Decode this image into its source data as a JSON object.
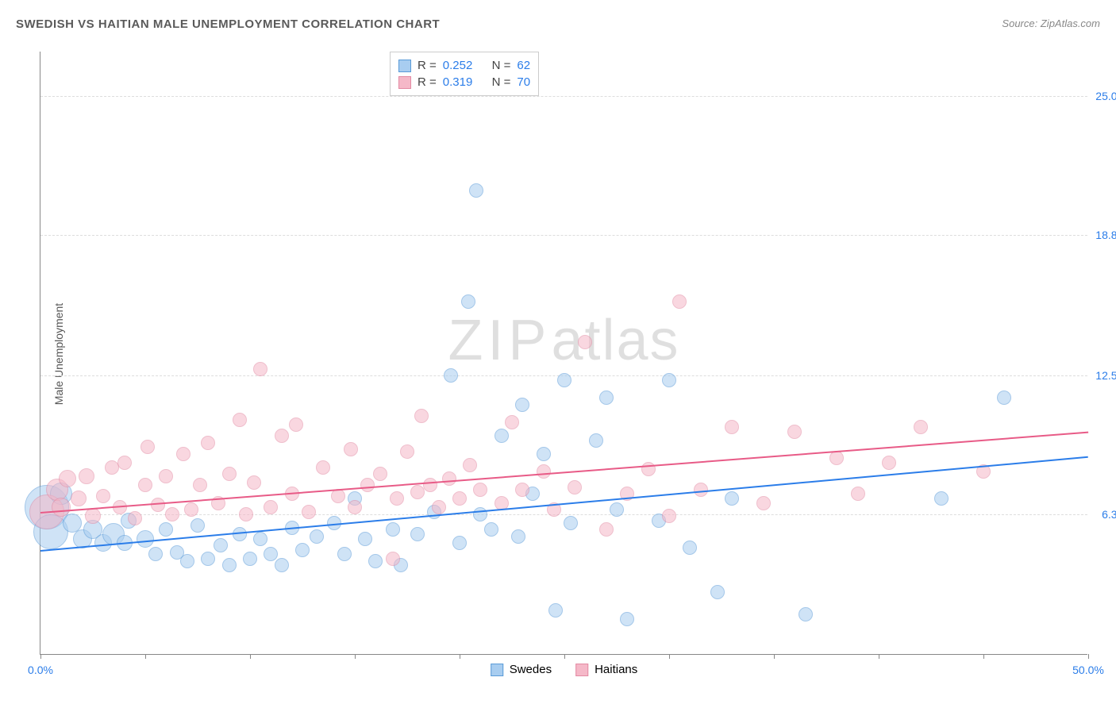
{
  "chart": {
    "type": "scatter",
    "title": "SWEDISH VS HAITIAN MALE UNEMPLOYMENT CORRELATION CHART",
    "source_label": "Source:",
    "source_name": "ZipAtlas.com",
    "y_axis_label": "Male Unemployment",
    "background_color": "#ffffff",
    "grid_color": "#dddddd",
    "axis_color": "#888888",
    "tick_color": "#2b7de9",
    "xlim": [
      0,
      50
    ],
    "ylim": [
      0,
      27
    ],
    "x_ticks": [
      0,
      5,
      10,
      15,
      20,
      25,
      30,
      35,
      40,
      45,
      50
    ],
    "x_tick_labels": {
      "0": "0.0%",
      "50": "50.0%"
    },
    "y_ticks": [
      6.3,
      12.5,
      18.8,
      25.0
    ],
    "y_tick_labels": [
      "6.3%",
      "12.5%",
      "18.8%",
      "25.0%"
    ],
    "watermark": {
      "text1": "ZIP",
      "text2": "atlas"
    },
    "series": [
      {
        "name": "Swedes",
        "fill_color": "#a8cdf0",
        "stroke_color": "#5a9bd8",
        "fill_opacity": 0.55,
        "trend_color": "#2b7de9",
        "R": "0.252",
        "N": "62",
        "trend": {
          "x1": 0,
          "y1": 4.7,
          "x2": 50,
          "y2": 8.9
        },
        "points": [
          {
            "x": 0.3,
            "y": 6.6,
            "r": 28
          },
          {
            "x": 0.5,
            "y": 5.5,
            "r": 22
          },
          {
            "x": 1.0,
            "y": 7.2,
            "r": 14
          },
          {
            "x": 1.5,
            "y": 5.9,
            "r": 12
          },
          {
            "x": 2.0,
            "y": 5.2,
            "r": 12
          },
          {
            "x": 2.5,
            "y": 5.6,
            "r": 12
          },
          {
            "x": 3.0,
            "y": 5.0,
            "r": 11
          },
          {
            "x": 3.5,
            "y": 5.4,
            "r": 14
          },
          {
            "x": 4.0,
            "y": 5.0,
            "r": 10
          },
          {
            "x": 4.2,
            "y": 6.0,
            "r": 10
          },
          {
            "x": 5.0,
            "y": 5.2,
            "r": 11
          },
          {
            "x": 5.5,
            "y": 4.5,
            "r": 9
          },
          {
            "x": 6.0,
            "y": 5.6,
            "r": 9
          },
          {
            "x": 6.5,
            "y": 4.6,
            "r": 9
          },
          {
            "x": 7.0,
            "y": 4.2,
            "r": 9
          },
          {
            "x": 7.5,
            "y": 5.8,
            "r": 9
          },
          {
            "x": 8.0,
            "y": 4.3,
            "r": 9
          },
          {
            "x": 8.6,
            "y": 4.9,
            "r": 9
          },
          {
            "x": 9.0,
            "y": 4.0,
            "r": 9
          },
          {
            "x": 9.5,
            "y": 5.4,
            "r": 9
          },
          {
            "x": 10.0,
            "y": 4.3,
            "r": 9
          },
          {
            "x": 10.5,
            "y": 5.2,
            "r": 9
          },
          {
            "x": 11.0,
            "y": 4.5,
            "r": 9
          },
          {
            "x": 11.5,
            "y": 4.0,
            "r": 9
          },
          {
            "x": 12.0,
            "y": 5.7,
            "r": 9
          },
          {
            "x": 12.5,
            "y": 4.7,
            "r": 9
          },
          {
            "x": 13.2,
            "y": 5.3,
            "r": 9
          },
          {
            "x": 14.0,
            "y": 5.9,
            "r": 9
          },
          {
            "x": 14.5,
            "y": 4.5,
            "r": 9
          },
          {
            "x": 15.0,
            "y": 7.0,
            "r": 9
          },
          {
            "x": 15.5,
            "y": 5.2,
            "r": 9
          },
          {
            "x": 16.0,
            "y": 4.2,
            "r": 9
          },
          {
            "x": 16.8,
            "y": 5.6,
            "r": 9
          },
          {
            "x": 17.2,
            "y": 4.0,
            "r": 9
          },
          {
            "x": 18.0,
            "y": 5.4,
            "r": 9
          },
          {
            "x": 18.8,
            "y": 6.4,
            "r": 9
          },
          {
            "x": 19.6,
            "y": 12.5,
            "r": 9
          },
          {
            "x": 20.0,
            "y": 5.0,
            "r": 9
          },
          {
            "x": 20.4,
            "y": 15.8,
            "r": 9
          },
          {
            "x": 20.8,
            "y": 20.8,
            "r": 9
          },
          {
            "x": 21.0,
            "y": 6.3,
            "r": 9
          },
          {
            "x": 21.5,
            "y": 5.6,
            "r": 9
          },
          {
            "x": 22.0,
            "y": 9.8,
            "r": 9
          },
          {
            "x": 22.8,
            "y": 5.3,
            "r": 9
          },
          {
            "x": 23.0,
            "y": 11.2,
            "r": 9
          },
          {
            "x": 23.5,
            "y": 7.2,
            "r": 9
          },
          {
            "x": 24.0,
            "y": 9.0,
            "r": 9
          },
          {
            "x": 24.6,
            "y": 2.0,
            "r": 9
          },
          {
            "x": 25.0,
            "y": 12.3,
            "r": 9
          },
          {
            "x": 25.3,
            "y": 5.9,
            "r": 9
          },
          {
            "x": 26.5,
            "y": 9.6,
            "r": 9
          },
          {
            "x": 27.0,
            "y": 11.5,
            "r": 9
          },
          {
            "x": 27.5,
            "y": 6.5,
            "r": 9
          },
          {
            "x": 28.0,
            "y": 1.6,
            "r": 9
          },
          {
            "x": 29.5,
            "y": 6.0,
            "r": 9
          },
          {
            "x": 30.0,
            "y": 12.3,
            "r": 9
          },
          {
            "x": 31.0,
            "y": 4.8,
            "r": 9
          },
          {
            "x": 32.3,
            "y": 2.8,
            "r": 9
          },
          {
            "x": 33.0,
            "y": 7.0,
            "r": 9
          },
          {
            "x": 36.5,
            "y": 1.8,
            "r": 9
          },
          {
            "x": 43.0,
            "y": 7.0,
            "r": 9
          },
          {
            "x": 46.0,
            "y": 11.5,
            "r": 9
          }
        ]
      },
      {
        "name": "Haitians",
        "fill_color": "#f5b8c8",
        "stroke_color": "#e38aa3",
        "fill_opacity": 0.55,
        "trend_color": "#e85b87",
        "R": "0.319",
        "N": "70",
        "trend": {
          "x1": 0,
          "y1": 6.4,
          "x2": 50,
          "y2": 10.0
        },
        "points": [
          {
            "x": 0.3,
            "y": 6.4,
            "r": 22
          },
          {
            "x": 0.8,
            "y": 7.4,
            "r": 14
          },
          {
            "x": 1.0,
            "y": 6.6,
            "r": 12
          },
          {
            "x": 1.3,
            "y": 7.9,
            "r": 11
          },
          {
            "x": 1.8,
            "y": 7.0,
            "r": 10
          },
          {
            "x": 2.2,
            "y": 8.0,
            "r": 10
          },
          {
            "x": 2.5,
            "y": 6.2,
            "r": 10
          },
          {
            "x": 3.0,
            "y": 7.1,
            "r": 9
          },
          {
            "x": 3.4,
            "y": 8.4,
            "r": 9
          },
          {
            "x": 3.8,
            "y": 6.6,
            "r": 9
          },
          {
            "x": 4.0,
            "y": 8.6,
            "r": 9
          },
          {
            "x": 4.5,
            "y": 6.1,
            "r": 9
          },
          {
            "x": 5.0,
            "y": 7.6,
            "r": 9
          },
          {
            "x": 5.1,
            "y": 9.3,
            "r": 9
          },
          {
            "x": 5.6,
            "y": 6.7,
            "r": 9
          },
          {
            "x": 6.0,
            "y": 8.0,
            "r": 9
          },
          {
            "x": 6.3,
            "y": 6.3,
            "r": 9
          },
          {
            "x": 6.8,
            "y": 9.0,
            "r": 9
          },
          {
            "x": 7.2,
            "y": 6.5,
            "r": 9
          },
          {
            "x": 7.6,
            "y": 7.6,
            "r": 9
          },
          {
            "x": 8.0,
            "y": 9.5,
            "r": 9
          },
          {
            "x": 8.5,
            "y": 6.8,
            "r": 9
          },
          {
            "x": 9.0,
            "y": 8.1,
            "r": 9
          },
          {
            "x": 9.5,
            "y": 10.5,
            "r": 9
          },
          {
            "x": 9.8,
            "y": 6.3,
            "r": 9
          },
          {
            "x": 10.2,
            "y": 7.7,
            "r": 9
          },
          {
            "x": 10.5,
            "y": 12.8,
            "r": 9
          },
          {
            "x": 11.0,
            "y": 6.6,
            "r": 9
          },
          {
            "x": 11.5,
            "y": 9.8,
            "r": 9
          },
          {
            "x": 12.0,
            "y": 7.2,
            "r": 9
          },
          {
            "x": 12.2,
            "y": 10.3,
            "r": 9
          },
          {
            "x": 12.8,
            "y": 6.4,
            "r": 9
          },
          {
            "x": 13.5,
            "y": 8.4,
            "r": 9
          },
          {
            "x": 14.2,
            "y": 7.1,
            "r": 9
          },
          {
            "x": 14.8,
            "y": 9.2,
            "r": 9
          },
          {
            "x": 15.0,
            "y": 6.6,
            "r": 9
          },
          {
            "x": 15.6,
            "y": 7.6,
            "r": 9
          },
          {
            "x": 16.2,
            "y": 8.1,
            "r": 9
          },
          {
            "x": 16.8,
            "y": 4.3,
            "r": 9
          },
          {
            "x": 17.0,
            "y": 7.0,
            "r": 9
          },
          {
            "x": 17.5,
            "y": 9.1,
            "r": 9
          },
          {
            "x": 18.0,
            "y": 7.3,
            "r": 9
          },
          {
            "x": 18.2,
            "y": 10.7,
            "r": 9
          },
          {
            "x": 18.6,
            "y": 7.6,
            "r": 9
          },
          {
            "x": 19.0,
            "y": 6.6,
            "r": 9
          },
          {
            "x": 19.5,
            "y": 7.9,
            "r": 9
          },
          {
            "x": 20.0,
            "y": 7.0,
            "r": 9
          },
          {
            "x": 20.5,
            "y": 8.5,
            "r": 9
          },
          {
            "x": 21.0,
            "y": 7.4,
            "r": 9
          },
          {
            "x": 22.0,
            "y": 6.8,
            "r": 9
          },
          {
            "x": 22.5,
            "y": 10.4,
            "r": 9
          },
          {
            "x": 23.0,
            "y": 7.4,
            "r": 9
          },
          {
            "x": 24.0,
            "y": 8.2,
            "r": 9
          },
          {
            "x": 24.5,
            "y": 6.5,
            "r": 9
          },
          {
            "x": 25.5,
            "y": 7.5,
            "r": 9
          },
          {
            "x": 26.0,
            "y": 14.0,
            "r": 9
          },
          {
            "x": 27.0,
            "y": 5.6,
            "r": 9
          },
          {
            "x": 28.0,
            "y": 7.2,
            "r": 9
          },
          {
            "x": 29.0,
            "y": 8.3,
            "r": 9
          },
          {
            "x": 30.0,
            "y": 6.2,
            "r": 9
          },
          {
            "x": 30.5,
            "y": 15.8,
            "r": 9
          },
          {
            "x": 31.5,
            "y": 7.4,
            "r": 9
          },
          {
            "x": 33.0,
            "y": 10.2,
            "r": 9
          },
          {
            "x": 34.5,
            "y": 6.8,
            "r": 9
          },
          {
            "x": 36.0,
            "y": 10.0,
            "r": 9
          },
          {
            "x": 38.0,
            "y": 8.8,
            "r": 9
          },
          {
            "x": 39.0,
            "y": 7.2,
            "r": 9
          },
          {
            "x": 40.5,
            "y": 8.6,
            "r": 9
          },
          {
            "x": 42.0,
            "y": 10.2,
            "r": 9
          },
          {
            "x": 45.0,
            "y": 8.2,
            "r": 9
          }
        ]
      }
    ],
    "stats_box": {
      "R_label": "R =",
      "N_label": "N ="
    },
    "bottom_legend_labels": [
      "Swedes",
      "Haitians"
    ]
  }
}
